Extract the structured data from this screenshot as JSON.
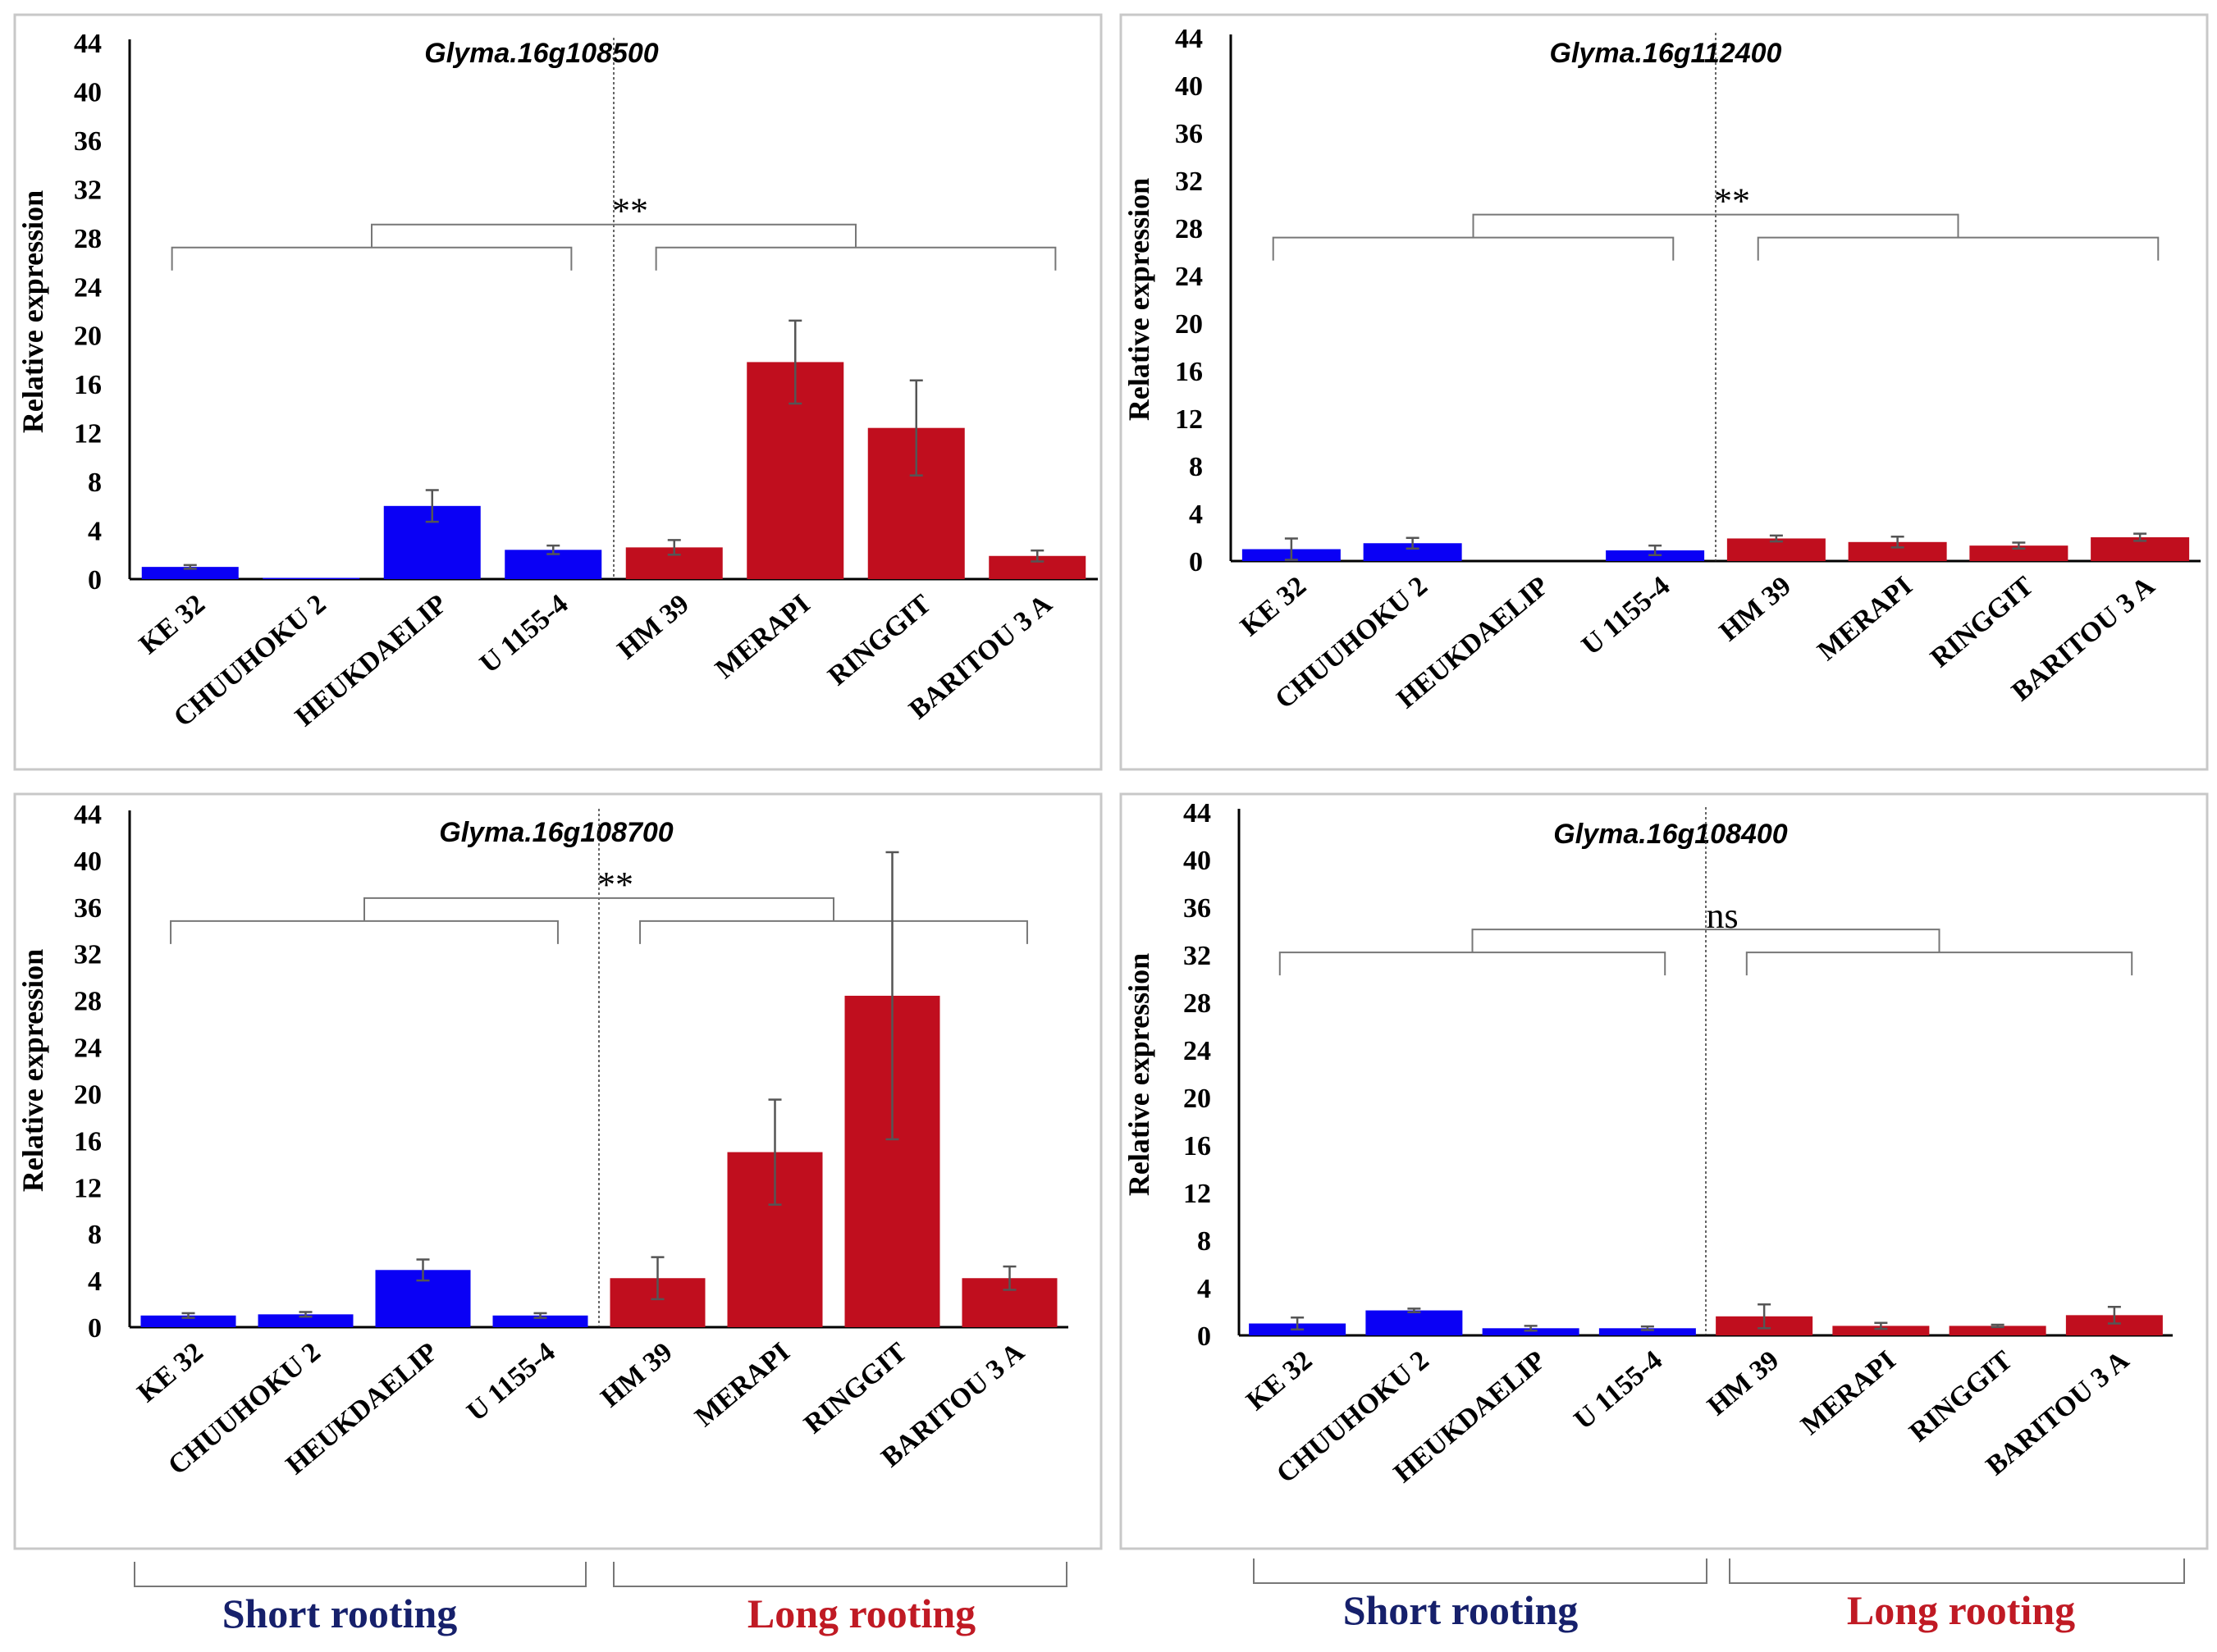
{
  "figure": {
    "short_label": "Short rooting",
    "long_label": "Long rooting",
    "colors": {
      "short": "#0a00f5",
      "long": "#c00e1e",
      "short_text": "#16206b",
      "long_text": "#c01a24",
      "error": "#555555"
    }
  },
  "chart_data": [
    {
      "type": "bar",
      "title": "Glyma.16g108500",
      "ylabel": "Relative expression",
      "ylim": [
        0,
        44
      ],
      "yticks": [
        "0",
        "4",
        "8",
        "12",
        "16",
        "20",
        "24",
        "28",
        "32",
        "36",
        "40",
        "44"
      ],
      "significance": "**",
      "categories": [
        "KE 32",
        "CHUUHOKU 2",
        "HEUKDAELIP",
        "U 1155-4",
        "HM 39",
        "MERAPI",
        "RINGGIT",
        "BARITOU 3 A"
      ],
      "groups": [
        "short",
        "short",
        "short",
        "short",
        "long",
        "long",
        "long",
        "long"
      ],
      "values": [
        1.0,
        0.1,
        6.0,
        2.4,
        2.6,
        17.8,
        12.4,
        1.9
      ],
      "errors": [
        0.15,
        0.0,
        1.3,
        0.35,
        0.6,
        3.4,
        3.9,
        0.45
      ]
    },
    {
      "type": "bar",
      "title": "Glyma.16g112400",
      "ylabel": "Relative expression",
      "ylim": [
        0,
        44
      ],
      "yticks": [
        "0",
        "4",
        "8",
        "12",
        "16",
        "20",
        "24",
        "28",
        "32",
        "36",
        "40",
        "44"
      ],
      "significance": "**",
      "categories": [
        "KE 32",
        "CHUUHOKU 2",
        "HEUKDAELIP",
        "U 1155-4",
        "HM 39",
        "MERAPI",
        "RINGGIT",
        "BARITOU 3 A"
      ],
      "groups": [
        "short",
        "short",
        "short",
        "short",
        "long",
        "long",
        "long",
        "long"
      ],
      "values": [
        1.0,
        1.5,
        0.0,
        0.9,
        1.9,
        1.6,
        1.3,
        2.0
      ],
      "errors": [
        0.9,
        0.45,
        0.0,
        0.4,
        0.25,
        0.45,
        0.25,
        0.3
      ]
    },
    {
      "type": "bar",
      "title": "Glyma.16g108700",
      "ylabel": "Relative expression",
      "ylim": [
        0,
        44
      ],
      "yticks": [
        "0",
        "4",
        "8",
        "12",
        "16",
        "20",
        "24",
        "28",
        "32",
        "36",
        "40",
        "44"
      ],
      "significance": "**",
      "categories": [
        "KE 32",
        "CHUUHOKU 2",
        "HEUKDAELIP",
        "U 1155-4",
        "HM 39",
        "MERAPI",
        "RINGGIT",
        "BARITOU 3 A"
      ],
      "groups": [
        "short",
        "short",
        "short",
        "short",
        "long",
        "long",
        "long",
        "long"
      ],
      "values": [
        1.0,
        1.1,
        4.9,
        1.0,
        4.2,
        15.0,
        28.4,
        4.2
      ],
      "errors": [
        0.2,
        0.2,
        0.9,
        0.2,
        1.8,
        4.5,
        12.3,
        1.0
      ]
    },
    {
      "type": "bar",
      "title": "Glyma.16g108400",
      "ylabel": "Relative expression",
      "ylim": [
        0,
        44
      ],
      "yticks": [
        "0",
        "4",
        "8",
        "12",
        "16",
        "20",
        "24",
        "28",
        "32",
        "36",
        "40",
        "44"
      ],
      "significance": "ns",
      "categories": [
        "KE 32",
        "CHUUHOKU 2",
        "HEUKDAELIP",
        "U 1155-4",
        "HM 39",
        "MERAPI",
        "RINGGIT",
        "BARITOU 3 A"
      ],
      "groups": [
        "short",
        "short",
        "short",
        "short",
        "long",
        "long",
        "long",
        "long"
      ],
      "values": [
        1.0,
        2.1,
        0.6,
        0.6,
        1.6,
        0.8,
        0.8,
        1.7
      ],
      "errors": [
        0.5,
        0.15,
        0.2,
        0.15,
        1.0,
        0.25,
        0.1,
        0.7
      ]
    }
  ]
}
